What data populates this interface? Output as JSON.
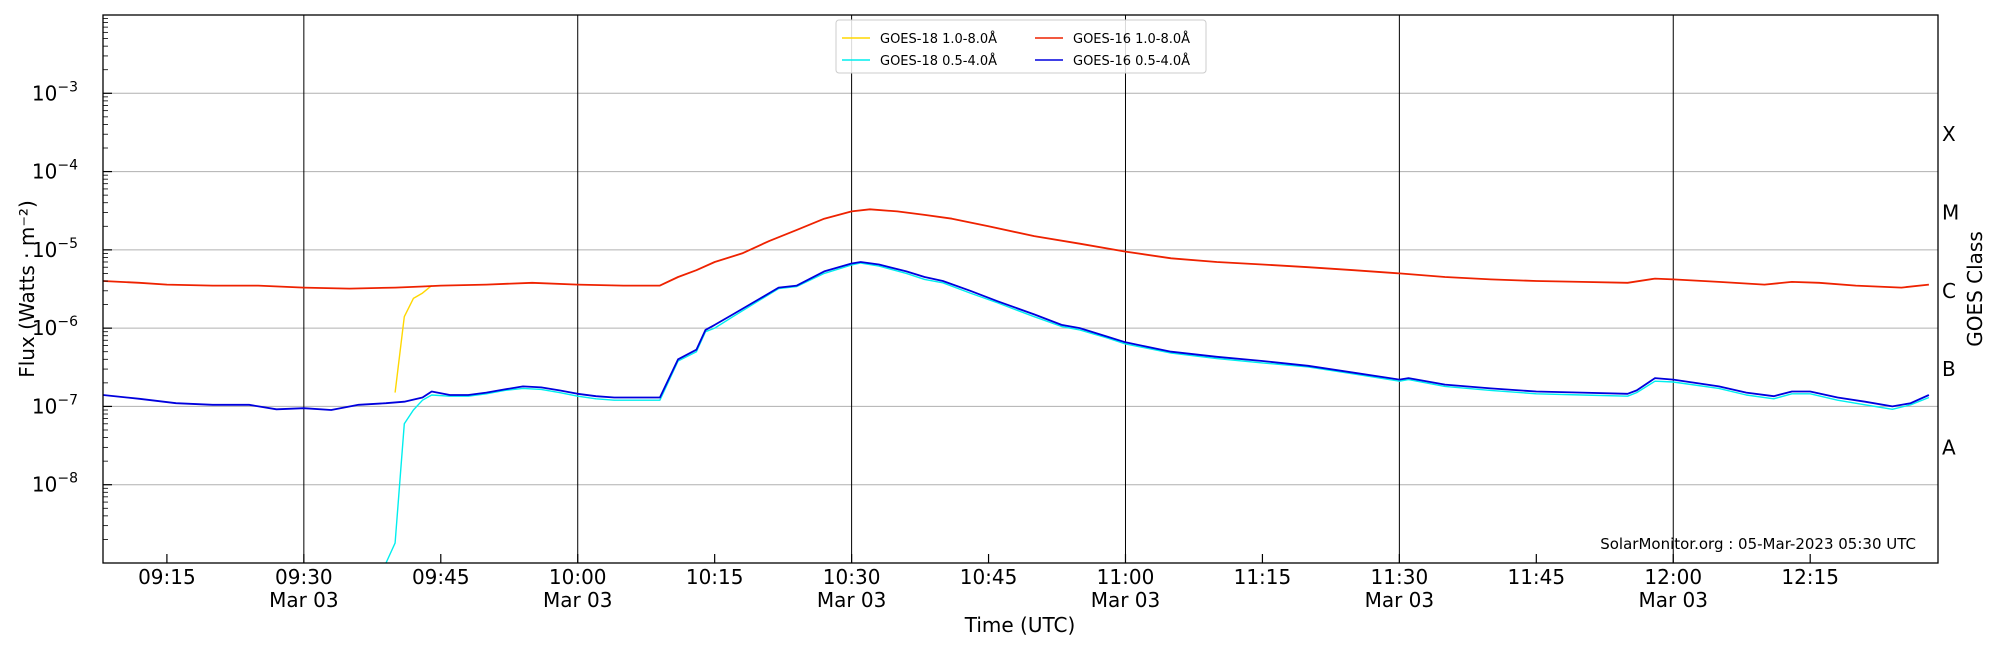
{
  "chart_data": {
    "type": "line",
    "xlabel": "Time (UTC)",
    "ylabel": "Flux (Watts · m⁻²)",
    "ylabel_right": "GOES Class",
    "y_scale": "log",
    "ylim": [
      1e-09,
      0.01
    ],
    "xlim": [
      "09:08",
      "12:29"
    ],
    "grid": "horizontal at decades, vertical at half-hours",
    "legend_placement": "top-center",
    "watermark": "SolarMonitor.org : 05-Mar-2023 05:30 UTC",
    "x_ticks": [
      {
        "time": "09:15",
        "label": "09:15",
        "date": ""
      },
      {
        "time": "09:30",
        "label": "09:30",
        "date": "Mar 03"
      },
      {
        "time": "09:45",
        "label": "09:45",
        "date": ""
      },
      {
        "time": "10:00",
        "label": "10:00",
        "date": "Mar 03"
      },
      {
        "time": "10:15",
        "label": "10:15",
        "date": ""
      },
      {
        "time": "10:30",
        "label": "10:30",
        "date": "Mar 03"
      },
      {
        "time": "10:45",
        "label": "10:45",
        "date": ""
      },
      {
        "time": "11:00",
        "label": "11:00",
        "date": "Mar 03"
      },
      {
        "time": "11:15",
        "label": "11:15",
        "date": ""
      },
      {
        "time": "11:30",
        "label": "11:30",
        "date": "Mar 03"
      },
      {
        "time": "11:45",
        "label": "11:45",
        "date": ""
      },
      {
        "time": "12:00",
        "label": "12:00",
        "date": "Mar 03"
      },
      {
        "time": "12:15",
        "label": "12:15",
        "date": ""
      }
    ],
    "y_ticks": [
      {
        "value": 1e-08,
        "base": "10",
        "exp": "−8"
      },
      {
        "value": 1e-07,
        "base": "10",
        "exp": "−7"
      },
      {
        "value": 1e-06,
        "base": "10",
        "exp": "−6"
      },
      {
        "value": 1e-05,
        "base": "10",
        "exp": "−5"
      },
      {
        "value": 0.0001,
        "base": "10",
        "exp": "−4"
      },
      {
        "value": 0.001,
        "base": "10",
        "exp": "−3"
      }
    ],
    "goes_classes": [
      {
        "label": "A",
        "value": 3e-08
      },
      {
        "label": "B",
        "value": 3e-07
      },
      {
        "label": "C",
        "value": 3e-06
      },
      {
        "label": "M",
        "value": 3e-05
      },
      {
        "label": "X",
        "value": 0.0003
      }
    ],
    "series": [
      {
        "name": "GOES-18 1.0-8.0Å",
        "color": "#ffd700",
        "points": [
          [
            "09:40",
            1.5e-07
          ],
          [
            "09:41",
            1.4e-06
          ],
          [
            "09:42",
            2.4e-06
          ],
          [
            "09:43",
            2.8e-06
          ],
          [
            "09:44",
            3.5e-06
          ]
        ]
      },
      {
        "name": "GOES-18 0.5-4.0Å",
        "color": "#00eeee",
        "points": [
          [
            "09:39",
            1e-09
          ],
          [
            "09:40",
            1.8e-09
          ],
          [
            "09:41",
            6e-08
          ],
          [
            "09:42",
            9e-08
          ],
          [
            "09:43",
            1.2e-07
          ],
          [
            "09:44",
            1.4e-07
          ],
          [
            "09:46",
            1.35e-07
          ],
          [
            "09:48",
            1.35e-07
          ],
          [
            "09:50",
            1.45e-07
          ],
          [
            "09:52",
            1.6e-07
          ],
          [
            "09:54",
            1.7e-07
          ],
          [
            "09:56",
            1.65e-07
          ],
          [
            "09:58",
            1.5e-07
          ],
          [
            "10:00",
            1.35e-07
          ],
          [
            "10:02",
            1.25e-07
          ],
          [
            "10:04",
            1.2e-07
          ],
          [
            "10:06",
            1.2e-07
          ],
          [
            "10:08",
            1.2e-07
          ],
          [
            "10:09",
            1.2e-07
          ],
          [
            "10:11",
            3.8e-07
          ],
          [
            "10:13",
            5e-07
          ],
          [
            "10:14",
            9e-07
          ],
          [
            "10:15",
            1e-06
          ],
          [
            "10:17",
            1.4e-06
          ],
          [
            "10:20",
            2.3e-06
          ],
          [
            "10:22",
            3.2e-06
          ],
          [
            "10:24",
            3.4e-06
          ],
          [
            "10:27",
            5e-06
          ],
          [
            "10:30",
            6.4e-06
          ],
          [
            "10:31",
            6.8e-06
          ],
          [
            "10:33",
            6.2e-06
          ],
          [
            "10:36",
            5e-06
          ],
          [
            "10:38",
            4.2e-06
          ],
          [
            "10:40",
            3.8e-06
          ],
          [
            "10:43",
            2.8e-06
          ],
          [
            "10:46",
            2.1e-06
          ],
          [
            "10:50",
            1.4e-06
          ],
          [
            "10:53",
            1.05e-06
          ],
          [
            "10:55",
            9.5e-07
          ],
          [
            "10:58",
            7.5e-07
          ],
          [
            "11:00",
            6.3e-07
          ],
          [
            "11:05",
            4.8e-07
          ],
          [
            "11:10",
            4.1e-07
          ],
          [
            "11:15",
            3.6e-07
          ],
          [
            "11:20",
            3.2e-07
          ],
          [
            "11:25",
            2.6e-07
          ],
          [
            "11:30",
            2.1e-07
          ],
          [
            "11:31",
            2.2e-07
          ],
          [
            "11:35",
            1.8e-07
          ],
          [
            "11:40",
            1.6e-07
          ],
          [
            "11:45",
            1.45e-07
          ],
          [
            "11:50",
            1.4e-07
          ],
          [
            "11:55",
            1.35e-07
          ],
          [
            "11:56",
            1.5e-07
          ],
          [
            "11:58",
            2.1e-07
          ],
          [
            "12:00",
            2.05e-07
          ],
          [
            "12:05",
            1.7e-07
          ],
          [
            "12:08",
            1.4e-07
          ],
          [
            "12:11",
            1.25e-07
          ],
          [
            "12:13",
            1.45e-07
          ],
          [
            "12:15",
            1.45e-07
          ],
          [
            "12:18",
            1.2e-07
          ],
          [
            "12:21",
            1.05e-07
          ],
          [
            "12:24",
            9.2e-08
          ],
          [
            "12:26",
            1.05e-07
          ],
          [
            "12:28",
            1.3e-07
          ]
        ]
      },
      {
        "name": "GOES-16 1.0-8.0Å",
        "color": "#ee2200",
        "points": [
          [
            "09:08",
            4e-06
          ],
          [
            "09:12",
            3.8e-06
          ],
          [
            "09:15",
            3.6e-06
          ],
          [
            "09:20",
            3.5e-06
          ],
          [
            "09:25",
            3.5e-06
          ],
          [
            "09:30",
            3.3e-06
          ],
          [
            "09:35",
            3.2e-06
          ],
          [
            "09:40",
            3.3e-06
          ],
          [
            "09:43",
            3.4e-06
          ],
          [
            "09:45",
            3.5e-06
          ],
          [
            "09:50",
            3.6e-06
          ],
          [
            "09:55",
            3.8e-06
          ],
          [
            "10:00",
            3.6e-06
          ],
          [
            "10:05",
            3.5e-06
          ],
          [
            "10:09",
            3.5e-06
          ],
          [
            "10:11",
            4.5e-06
          ],
          [
            "10:13",
            5.5e-06
          ],
          [
            "10:15",
            7e-06
          ],
          [
            "10:18",
            9e-06
          ],
          [
            "10:21",
            1.3e-05
          ],
          [
            "10:24",
            1.8e-05
          ],
          [
            "10:27",
            2.5e-05
          ],
          [
            "10:30",
            3.1e-05
          ],
          [
            "10:32",
            3.3e-05
          ],
          [
            "10:35",
            3.1e-05
          ],
          [
            "10:38",
            2.8e-05
          ],
          [
            "10:41",
            2.5e-05
          ],
          [
            "10:45",
            2e-05
          ],
          [
            "10:50",
            1.5e-05
          ],
          [
            "10:55",
            1.2e-05
          ],
          [
            "11:00",
            9.5e-06
          ],
          [
            "11:05",
            7.8e-06
          ],
          [
            "11:10",
            7e-06
          ],
          [
            "11:15",
            6.5e-06
          ],
          [
            "11:20",
            6e-06
          ],
          [
            "11:25",
            5.5e-06
          ],
          [
            "11:30",
            5e-06
          ],
          [
            "11:35",
            4.5e-06
          ],
          [
            "11:40",
            4.2e-06
          ],
          [
            "11:45",
            4e-06
          ],
          [
            "11:50",
            3.9e-06
          ],
          [
            "11:55",
            3.8e-06
          ],
          [
            "11:58",
            4.3e-06
          ],
          [
            "12:00",
            4.2e-06
          ],
          [
            "12:05",
            3.9e-06
          ],
          [
            "12:10",
            3.6e-06
          ],
          [
            "12:13",
            3.9e-06
          ],
          [
            "12:16",
            3.8e-06
          ],
          [
            "12:20",
            3.5e-06
          ],
          [
            "12:25",
            3.3e-06
          ],
          [
            "12:28",
            3.6e-06
          ]
        ]
      },
      {
        "name": "GOES-16 0.5-4.0Å",
        "color": "#0000dd",
        "points": [
          [
            "09:08",
            1.4e-07
          ],
          [
            "09:12",
            1.25e-07
          ],
          [
            "09:16",
            1.1e-07
          ],
          [
            "09:20",
            1.05e-07
          ],
          [
            "09:24",
            1.05e-07
          ],
          [
            "09:27",
            9.2e-08
          ],
          [
            "09:30",
            9.5e-08
          ],
          [
            "09:33",
            9e-08
          ],
          [
            "09:36",
            1.05e-07
          ],
          [
            "09:39",
            1.1e-07
          ],
          [
            "09:41",
            1.15e-07
          ],
          [
            "09:43",
            1.3e-07
          ],
          [
            "09:44",
            1.55e-07
          ],
          [
            "09:46",
            1.4e-07
          ],
          [
            "09:48",
            1.4e-07
          ],
          [
            "09:50",
            1.5e-07
          ],
          [
            "09:52",
            1.65e-07
          ],
          [
            "09:54",
            1.8e-07
          ],
          [
            "09:56",
            1.75e-07
          ],
          [
            "09:58",
            1.6e-07
          ],
          [
            "10:00",
            1.45e-07
          ],
          [
            "10:02",
            1.35e-07
          ],
          [
            "10:04",
            1.3e-07
          ],
          [
            "10:06",
            1.3e-07
          ],
          [
            "10:09",
            1.3e-07
          ],
          [
            "10:11",
            4e-07
          ],
          [
            "10:13",
            5.3e-07
          ],
          [
            "10:14",
            9.5e-07
          ],
          [
            "10:15",
            1.1e-06
          ],
          [
            "10:17",
            1.5e-06
          ],
          [
            "10:20",
            2.4e-06
          ],
          [
            "10:22",
            3.3e-06
          ],
          [
            "10:24",
            3.5e-06
          ],
          [
            "10:27",
            5.3e-06
          ],
          [
            "10:30",
            6.7e-06
          ],
          [
            "10:31",
            7e-06
          ],
          [
            "10:33",
            6.5e-06
          ],
          [
            "10:36",
            5.3e-06
          ],
          [
            "10:38",
            4.5e-06
          ],
          [
            "10:40",
            4e-06
          ],
          [
            "10:43",
            3e-06
          ],
          [
            "10:46",
            2.2e-06
          ],
          [
            "10:50",
            1.5e-06
          ],
          [
            "10:53",
            1.1e-06
          ],
          [
            "10:55",
            1e-06
          ],
          [
            "10:58",
            7.8e-07
          ],
          [
            "11:00",
            6.6e-07
          ],
          [
            "11:05",
            5e-07
          ],
          [
            "11:10",
            4.3e-07
          ],
          [
            "11:15",
            3.8e-07
          ],
          [
            "11:20",
            3.3e-07
          ],
          [
            "11:25",
            2.7e-07
          ],
          [
            "11:30",
            2.2e-07
          ],
          [
            "11:31",
            2.3e-07
          ],
          [
            "11:35",
            1.9e-07
          ],
          [
            "11:40",
            1.7e-07
          ],
          [
            "11:45",
            1.55e-07
          ],
          [
            "11:50",
            1.5e-07
          ],
          [
            "11:55",
            1.45e-07
          ],
          [
            "11:56",
            1.6e-07
          ],
          [
            "11:58",
            2.3e-07
          ],
          [
            "12:00",
            2.2e-07
          ],
          [
            "12:05",
            1.8e-07
          ],
          [
            "12:08",
            1.5e-07
          ],
          [
            "12:11",
            1.35e-07
          ],
          [
            "12:13",
            1.55e-07
          ],
          [
            "12:15",
            1.55e-07
          ],
          [
            "12:18",
            1.3e-07
          ],
          [
            "12:21",
            1.15e-07
          ],
          [
            "12:24",
            1e-07
          ],
          [
            "12:26",
            1.1e-07
          ],
          [
            "12:28",
            1.4e-07
          ]
        ]
      }
    ]
  }
}
